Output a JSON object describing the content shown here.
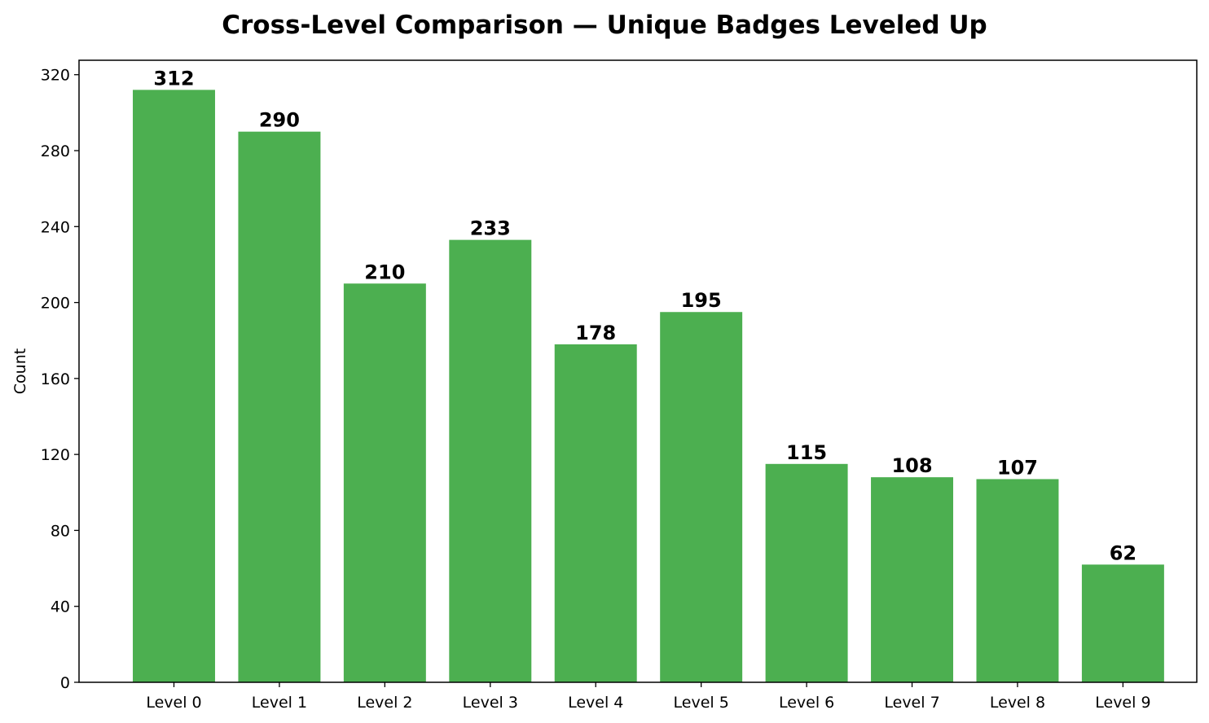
{
  "chart_data": {
    "type": "bar",
    "title": "Cross-Level Comparison — Unique Badges Leveled Up",
    "xlabel": "",
    "ylabel": "Count",
    "categories": [
      "Level 0",
      "Level 1",
      "Level 2",
      "Level 3",
      "Level 4",
      "Level 5",
      "Level 6",
      "Level 7",
      "Level 8",
      "Level 9"
    ],
    "values": [
      312,
      290,
      210,
      233,
      178,
      195,
      115,
      108,
      107,
      62
    ],
    "data_labels": [
      "312",
      "290",
      "210",
      "233",
      "178",
      "195",
      "115",
      "108",
      "107",
      "62"
    ],
    "ylim": [
      0,
      327.6
    ],
    "yticks": [
      0,
      40,
      80,
      120,
      160,
      200,
      240,
      280,
      320
    ],
    "ytick_labels": [
      "0",
      "40",
      "80",
      "120",
      "160",
      "200",
      "240",
      "280",
      "320"
    ],
    "grid": false,
    "legend": "none",
    "bar_color": "#4caf50"
  }
}
